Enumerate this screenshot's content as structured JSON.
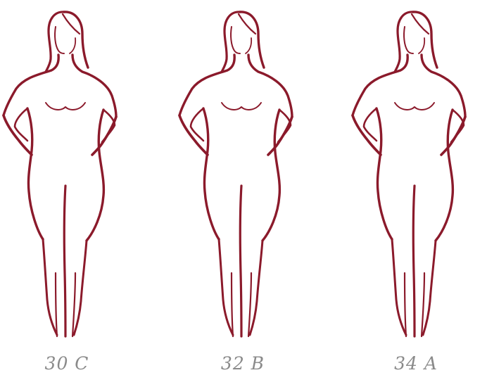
{
  "accent_color": "#8b1a2b",
  "label_color": "#8a8a8a",
  "figures": [
    {
      "icon": "female-silhouette-icon",
      "label": "30 C"
    },
    {
      "icon": "female-silhouette-icon",
      "label": "32 B"
    },
    {
      "icon": "female-silhouette-icon",
      "label": "34 A"
    }
  ]
}
